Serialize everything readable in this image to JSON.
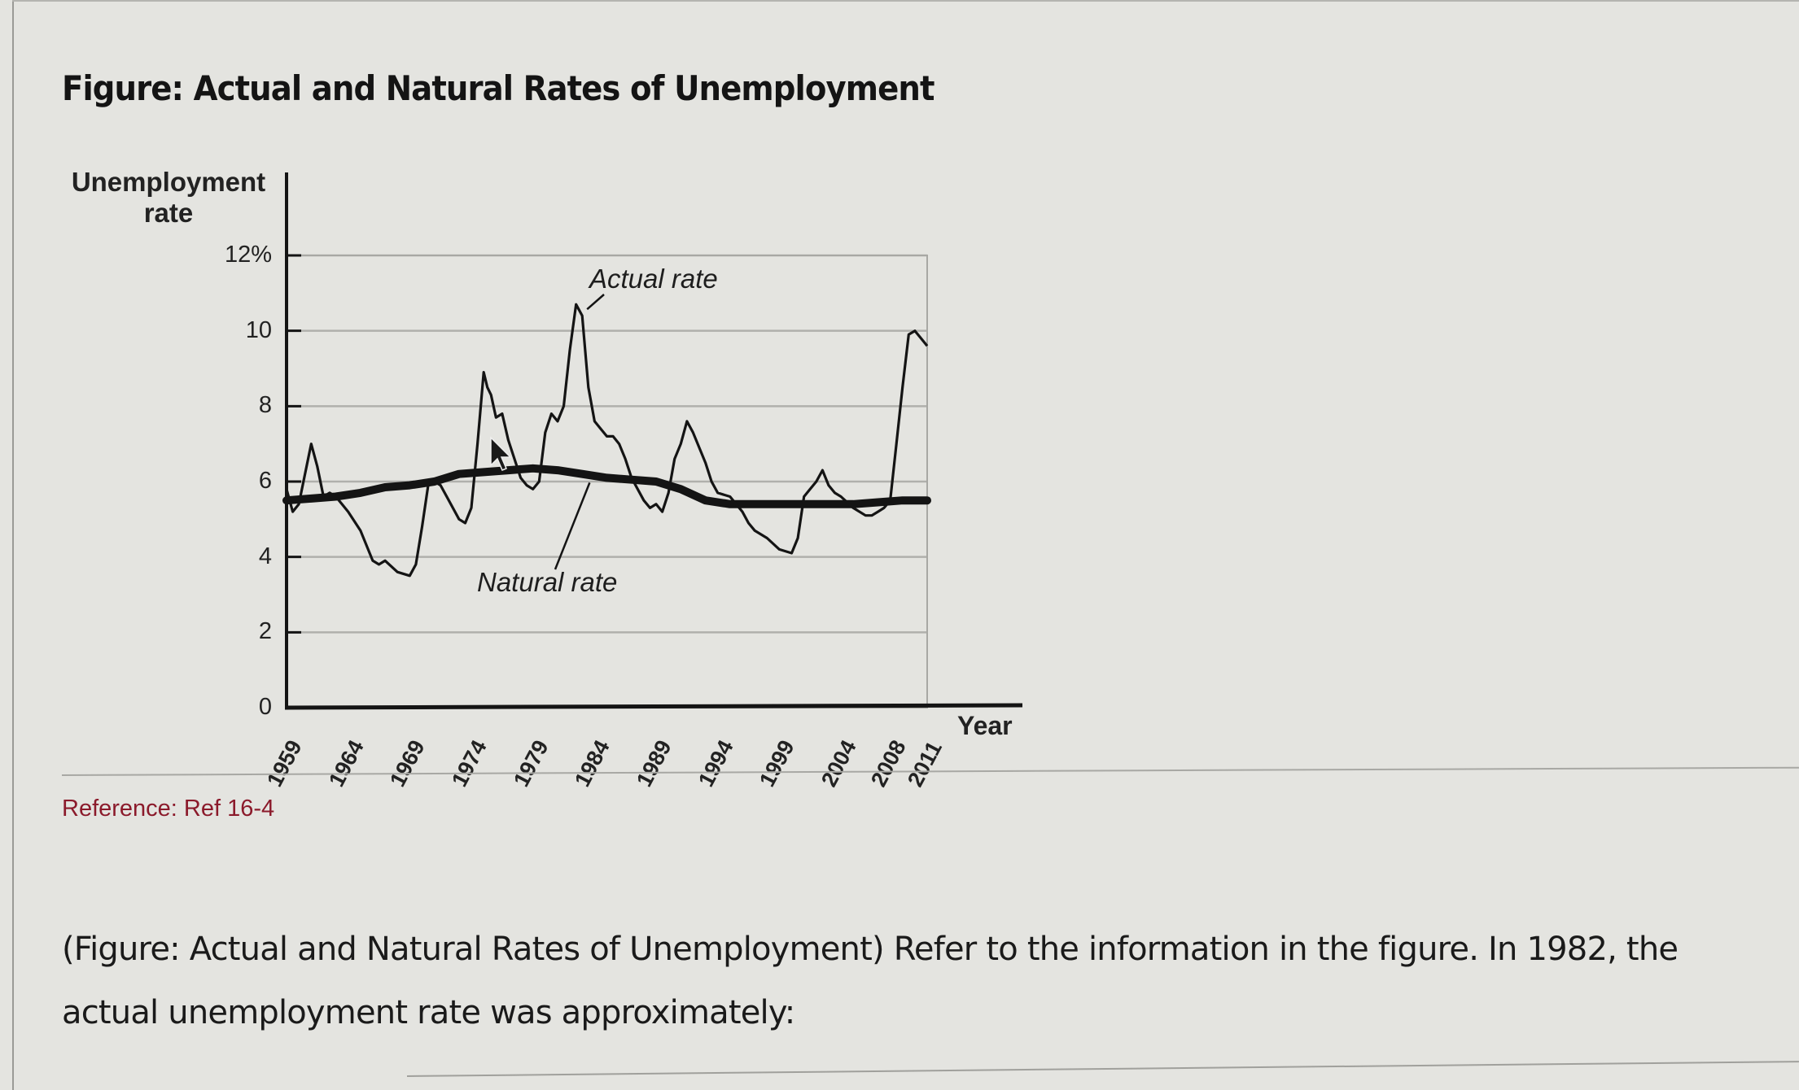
{
  "figure": {
    "title": "Figure: Actual and Natural Rates of Unemployment",
    "reference": "Reference: Ref 16-4"
  },
  "question": {
    "text": "(Figure: Actual and Natural Rates of Unemployment) Refer to the information in the figure. In 1982, the actual unemployment rate was approximately:"
  },
  "colors": {
    "background": "#e4e4e0",
    "line": "#141414",
    "grid": "#b0b0ac",
    "reference": "#8b1a2b"
  },
  "chart_data": {
    "type": "line",
    "title": "Figure: Actual and Natural Rates of Unemployment",
    "xlabel": "Year",
    "ylabel": "Unemployment rate",
    "ylim": [
      0,
      12
    ],
    "xlim": [
      1959,
      2011
    ],
    "grid": true,
    "y_ticks": [
      "0",
      "2",
      "4",
      "6",
      "8",
      "10",
      "12%"
    ],
    "x_ticks": [
      "1959",
      "1964",
      "1969",
      "1974",
      "1979",
      "1984",
      "1989",
      "1994",
      "1999",
      "2004",
      "2008",
      "2011"
    ],
    "annotations": [
      {
        "text": "Actual rate",
        "points_to": [
          1983,
          10.7
        ]
      },
      {
        "text": "Natural rate",
        "points_to": [
          1984,
          6.1
        ]
      }
    ],
    "series": [
      {
        "name": "Actual rate",
        "x": [
          1959,
          1959.5,
          1960,
          1960.5,
          1961,
          1961.5,
          1962,
          1962.5,
          1963,
          1963.5,
          1964,
          1965,
          1966,
          1966.5,
          1967,
          1968,
          1969,
          1969.5,
          1970,
          1970.5,
          1971,
          1971.5,
          1972,
          1973,
          1973.5,
          1974,
          1974.5,
          1975,
          1975.3,
          1975.6,
          1976,
          1976.5,
          1977,
          1978,
          1978.5,
          1979,
          1979.5,
          1980,
          1980.5,
          1981,
          1981.5,
          1982,
          1982.5,
          1983,
          1983.5,
          1984,
          1984.5,
          1985,
          1985.5,
          1986,
          1986.5,
          1987,
          1988,
          1988.5,
          1989,
          1989.5,
          1990,
          1990.5,
          1991,
          1991.5,
          1992,
          1992.5,
          1993,
          1993.5,
          1994,
          1995,
          1996,
          1996.5,
          1997,
          1998,
          1999,
          2000,
          2000.5,
          2001,
          2001.5,
          2002,
          2002.5,
          2003,
          2003.5,
          2004,
          2005,
          2006,
          2006.5,
          2007,
          2007.5,
          2008,
          2008.5,
          2009,
          2009.5,
          2010,
          2010.5,
          2011
        ],
        "values": [
          5.8,
          5.2,
          5.4,
          6.2,
          7.0,
          6.4,
          5.6,
          5.7,
          5.6,
          5.4,
          5.2,
          4.7,
          3.9,
          3.8,
          3.9,
          3.6,
          3.5,
          3.8,
          4.8,
          5.9,
          6.0,
          5.9,
          5.6,
          5.0,
          4.9,
          5.3,
          7.0,
          8.9,
          8.5,
          8.3,
          7.7,
          7.8,
          7.1,
          6.1,
          5.9,
          5.8,
          6.0,
          7.3,
          7.8,
          7.6,
          8.0,
          9.5,
          10.7,
          10.4,
          8.5,
          7.6,
          7.4,
          7.2,
          7.2,
          7.0,
          6.6,
          6.1,
          5.5,
          5.3,
          5.4,
          5.2,
          5.7,
          6.6,
          7.0,
          7.6,
          7.3,
          6.9,
          6.5,
          6.0,
          5.7,
          5.6,
          5.2,
          4.9,
          4.7,
          4.5,
          4.2,
          4.1,
          4.5,
          5.6,
          5.8,
          6.0,
          6.3,
          5.9,
          5.7,
          5.6,
          5.3,
          5.1,
          5.1,
          5.2,
          5.3,
          5.5,
          7.0,
          8.5,
          9.9,
          10.0,
          9.8,
          9.6
        ]
      },
      {
        "name": "Natural rate",
        "x": [
          1959,
          1961,
          1963,
          1965,
          1967,
          1969,
          1971,
          1973,
          1975,
          1977,
          1979,
          1981,
          1983,
          1985,
          1987,
          1989,
          1991,
          1993,
          1995,
          1997,
          1999,
          2001,
          2003,
          2005,
          2007,
          2009,
          2011
        ],
        "values": [
          5.5,
          5.55,
          5.6,
          5.7,
          5.85,
          5.9,
          6.0,
          6.2,
          6.25,
          6.3,
          6.35,
          6.3,
          6.2,
          6.1,
          6.05,
          6.0,
          5.8,
          5.5,
          5.4,
          5.4,
          5.4,
          5.4,
          5.4,
          5.4,
          5.45,
          5.5,
          5.5
        ]
      }
    ]
  }
}
